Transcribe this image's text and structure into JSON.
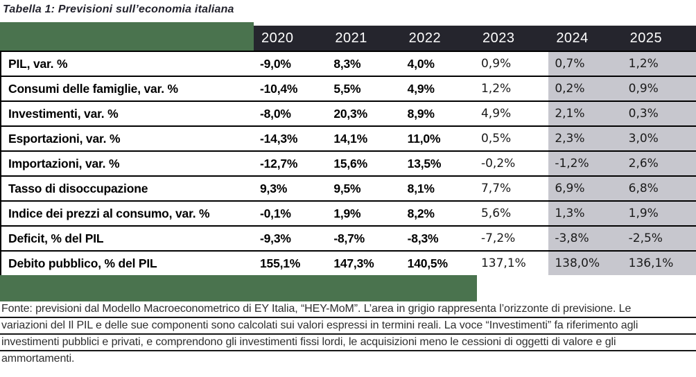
{
  "title": "Tabella 1: Previsioni sull’economia italiana",
  "table": {
    "year_headers": [
      "2020",
      "2021",
      "2022",
      "2023",
      "2024",
      "2025"
    ],
    "rows": [
      {
        "label": "PIL, var. %",
        "values": [
          "-9,0%",
          "8,3%",
          "4,0%",
          "0,9%",
          "0,7%",
          "1,2%"
        ]
      },
      {
        "label": "Consumi delle famiglie, var. %",
        "values": [
          "-10,4%",
          "5,5%",
          "4,9%",
          "1,2%",
          "0,2%",
          "0,9%"
        ]
      },
      {
        "label": "Investimenti, var. %",
        "values": [
          "-8,0%",
          "20,3%",
          "8,9%",
          "4,9%",
          "2,1%",
          "0,3%"
        ]
      },
      {
        "label": "Esportazioni, var. %",
        "values": [
          "-14,3%",
          "14,1%",
          "11,0%",
          "0,5%",
          "2,3%",
          "3,0%"
        ]
      },
      {
        "label": "Importazioni, var. %",
        "values": [
          "-12,7%",
          "15,6%",
          "13,5%",
          "-0,2%",
          "-1,2%",
          "2,6%"
        ]
      },
      {
        "label": "Tasso di disoccupazione",
        "values": [
          "9,3%",
          "9,5%",
          "8,1%",
          "7,7%",
          "6,9%",
          "6,8%"
        ]
      },
      {
        "label": "Indice dei prezzi al consumo, var. %",
        "values": [
          "-0,1%",
          "1,9%",
          "8,2%",
          "5,6%",
          "1,3%",
          "1,9%"
        ]
      },
      {
        "label": "Deficit, % del PIL",
        "values": [
          "-9,3%",
          "-8,7%",
          "-8,3%",
          "-7,2%",
          "-3,8%",
          "-2,5%"
        ]
      },
      {
        "label": "Debito pubblico, % del PIL",
        "values": [
          "155,1%",
          "147,3%",
          "140,5%",
          "137,1%",
          "138,0%",
          "136,1%"
        ]
      }
    ]
  },
  "footnote": {
    "lines": [
      "Fonte: previsioni dal Modello Macroeconometrico di EY Italia, “HEY-MoM”. L’area in grigio rappresenta l’orizzonte di previsione. Le",
      "variazioni del Il PIL e delle sue componenti sono calcolati sui valori espressi in termini reali. La voce “Investimenti” fa riferimento agli",
      "investimenti pubblici e privati, e comprendono gli investimenti fissi lordi, le acquisizioni meno le cessioni di oggetti di valore e gli",
      "ammortamenti."
    ]
  },
  "colors": {
    "header-bg": "#25252d",
    "forecast-bg": "#c7c7ce",
    "band-green": "#4a734e",
    "line": "#000000",
    "footer-rule": "#161616",
    "title-color": "#23232d"
  }
}
